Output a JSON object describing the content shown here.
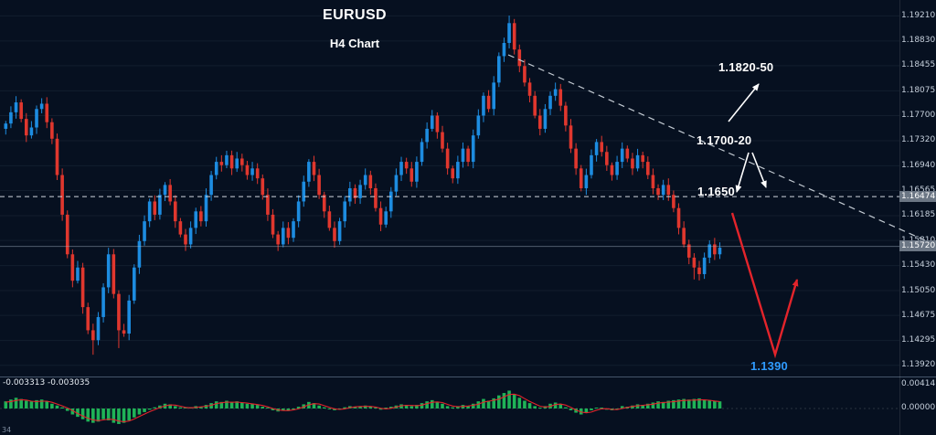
{
  "meta": {
    "title": "EURUSD",
    "subtitle": "H4 Chart"
  },
  "annotations": {
    "target_upper": "1.1820-50",
    "resistance_zone": "1.1700-20",
    "level": "1.1650",
    "target_lower": "1.1390"
  },
  "indicator": {
    "values_text": "-0.003313 -0.003035",
    "partial_text": "34"
  },
  "axis": {
    "price_labels": [
      "1.19210",
      "1.18830",
      "1.18455",
      "1.18075",
      "1.17700",
      "1.17320",
      "1.16940",
      "1.16565",
      "1.16185",
      "1.15810",
      "1.15430",
      "1.15050",
      "1.14675",
      "1.14295",
      "1.13920"
    ],
    "highlighted": [
      {
        "text": "1.16474",
        "price": 1.16474
      },
      {
        "text": "1.15720",
        "price": 1.1572
      }
    ],
    "indicator_labels": [
      "0.00414",
      "0.00000"
    ]
  },
  "colors": {
    "background": "#061020",
    "bull": "#1d8ce0",
    "bear": "#e0372e",
    "histogram": "#1fb357",
    "signal_line": "#e3242b",
    "trendline": "#c2cad2",
    "dashed_price_line": "#cfd6de",
    "annotation_text": "#ffffff",
    "target_lower_text": "#2f9bff"
  },
  "chart_data": {
    "type": "candlestick",
    "symbol": "EURUSD",
    "timeframe": "H4",
    "title": "EURUSD H4 Chart",
    "price_axis_range": [
      1.1375,
      1.1945
    ],
    "dashed_price_line": 1.16474,
    "current_price": 1.1572,
    "trendline_description": "descending dashed resistance from 1.1920 peak",
    "targets": {
      "upper": "1.1820-50",
      "resistance": "1.1700-20",
      "level": "1.1650",
      "lower": "1.1390"
    },
    "closes": [
      1.1758,
      1.1775,
      1.179,
      1.1765,
      1.174,
      1.1752,
      1.178,
      1.1788,
      1.176,
      1.1735,
      1.168,
      1.162,
      1.156,
      1.152,
      1.154,
      1.148,
      1.1445,
      1.143,
      1.1465,
      1.151,
      1.156,
      1.15,
      1.1445,
      1.144,
      1.149,
      1.154,
      1.158,
      1.161,
      1.164,
      1.162,
      1.165,
      1.1665,
      1.164,
      1.161,
      1.159,
      1.1575,
      1.16,
      1.1625,
      1.161,
      1.165,
      1.168,
      1.17,
      1.1695,
      1.171,
      1.169,
      1.1705,
      1.1695,
      1.168,
      1.169,
      1.1675,
      1.165,
      1.162,
      1.159,
      1.1575,
      1.16,
      1.1585,
      1.161,
      1.164,
      1.167,
      1.17,
      1.168,
      1.165,
      1.1625,
      1.16,
      1.158,
      1.161,
      1.164,
      1.166,
      1.1645,
      1.1665,
      1.168,
      1.166,
      1.163,
      1.1605,
      1.1625,
      1.1655,
      1.168,
      1.17,
      1.169,
      1.167,
      1.17,
      1.173,
      1.175,
      1.177,
      1.1745,
      1.172,
      1.169,
      1.1675,
      1.17,
      1.172,
      1.17,
      1.174,
      1.177,
      1.18,
      1.178,
      1.182,
      1.186,
      1.188,
      1.191,
      1.187,
      1.1845,
      1.182,
      1.18,
      1.177,
      1.175,
      1.178,
      1.18,
      1.181,
      1.1785,
      1.1755,
      1.172,
      1.169,
      1.166,
      1.168,
      1.171,
      1.173,
      1.1715,
      1.1695,
      1.168,
      1.17,
      1.172,
      1.1705,
      1.169,
      1.171,
      1.17,
      1.168,
      1.166,
      1.165,
      1.1665,
      1.165,
      1.163,
      1.16,
      1.1575,
      1.1555,
      1.154,
      1.153,
      1.1555,
      1.1575,
      1.156,
      1.157
    ],
    "wick_overrides": {
      "17": {
        "l": 1.1408
      },
      "22": {
        "l": 1.1418
      },
      "98": {
        "h": 1.19215
      },
      "134": {
        "l": 1.1522
      }
    },
    "histogram": [
      0.0012,
      0.0015,
      0.0018,
      0.0016,
      0.0013,
      0.0012,
      0.0014,
      0.0015,
      0.0012,
      0.0008,
      0.0005,
      0.0002,
      -0.0004,
      -0.001,
      -0.0014,
      -0.0018,
      -0.0022,
      -0.0024,
      -0.0022,
      -0.0018,
      -0.002,
      -0.0024,
      -0.0026,
      -0.0024,
      -0.002,
      -0.0015,
      -0.001,
      -0.0006,
      -0.0002,
      0.0002,
      0.0005,
      0.0008,
      0.0007,
      0.0004,
      0.0002,
      0.0,
      0.0002,
      0.0004,
      0.0003,
      0.0006,
      0.0009,
      0.0012,
      0.0011,
      0.0013,
      0.0011,
      0.0012,
      0.001,
      0.0008,
      0.0008,
      0.0006,
      0.0003,
      0.0,
      -0.0003,
      -0.0005,
      -0.0003,
      -0.0004,
      -0.0001,
      0.0003,
      0.0007,
      0.0011,
      0.0009,
      0.0005,
      0.0002,
      -0.0001,
      -0.0003,
      -0.0001,
      0.0002,
      0.0004,
      0.0003,
      0.0004,
      0.0005,
      0.0003,
      0.0,
      -0.0002,
      0.0,
      0.0003,
      0.0005,
      0.0007,
      0.0006,
      0.0004,
      0.0006,
      0.0009,
      0.0012,
      0.0014,
      0.0011,
      0.0008,
      0.0004,
      0.0002,
      0.0004,
      0.0006,
      0.0004,
      0.0008,
      0.0012,
      0.0016,
      0.0013,
      0.0017,
      0.0022,
      0.0026,
      0.003,
      0.0024,
      0.0018,
      0.0013,
      0.0009,
      0.0004,
      0.0,
      0.0004,
      0.0008,
      0.001,
      0.0007,
      0.0002,
      -0.0003,
      -0.0007,
      -0.001,
      -0.0007,
      -0.0003,
      0.0001,
      0.0,
      -0.0002,
      -0.0003,
      -0.0001,
      0.0004,
      0.0003,
      0.0005,
      0.0007,
      0.0006,
      0.0008,
      0.001,
      0.0012,
      0.0011,
      0.0013,
      0.0014,
      0.0015,
      0.0016,
      0.0015,
      0.0016,
      0.0017,
      0.0015,
      0.0014,
      0.0013,
      0.0012
    ]
  }
}
